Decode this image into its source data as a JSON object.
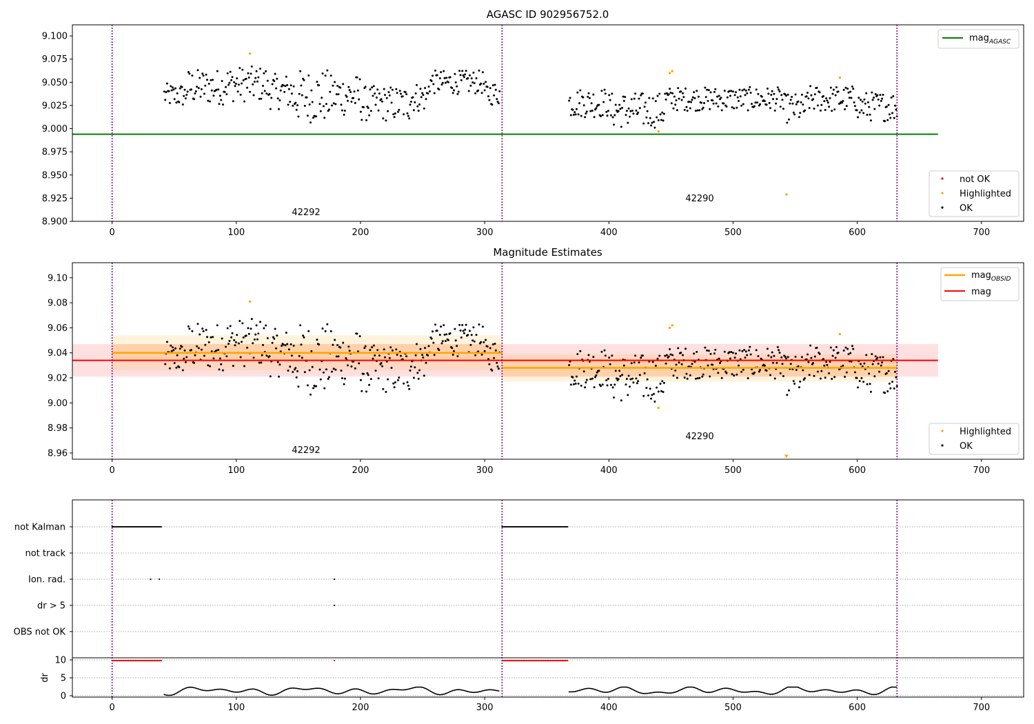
{
  "colors": {
    "ok": "#000000",
    "highlighted": "#ffa500",
    "not_ok": "#ff0000",
    "agasc_line": "#008000",
    "obsid_line": "#ffa500",
    "mag_line": "#ff0000",
    "vline": "#800080"
  },
  "chart_data": [
    {
      "type": "scatter",
      "title": "AGASC ID 902956752.0",
      "xlim": [
        -32,
        734
      ],
      "ylim": [
        8.9,
        9.112
      ],
      "xticks": [
        "0",
        "100",
        "200",
        "300",
        "400",
        "500",
        "600",
        "700"
      ],
      "yticks": [
        "8.900",
        "8.925",
        "8.950",
        "8.975",
        "9.000",
        "9.025",
        "9.050",
        "9.075",
        "9.100"
      ],
      "obsid_boundaries": [
        0,
        314,
        632
      ],
      "obsid_labels": [
        {
          "text": "42292",
          "x": 156,
          "y": 8.909
        },
        {
          "text": "42290",
          "x": 472,
          "y": 8.924
        }
      ],
      "agasc_mag": 8.994,
      "agasc_mag_xrange": [
        -32,
        665
      ],
      "highlighted": [
        [
          111,
          9.081
        ],
        [
          449,
          9.06
        ],
        [
          451,
          9.062
        ],
        [
          440,
          8.997
        ],
        [
          543,
          8.929
        ],
        [
          586,
          9.055
        ]
      ],
      "legend_top": {
        "label_main": "mag",
        "label_sub": "AGASC"
      },
      "legend_bottom": [
        "not OK",
        "Highlighted",
        "OK"
      ]
    },
    {
      "type": "scatter",
      "title": "Magnitude Estimates",
      "xlim": [
        -32,
        734
      ],
      "ylim": [
        8.955,
        9.112
      ],
      "xticks": [
        "0",
        "100",
        "200",
        "300",
        "400",
        "500",
        "600",
        "700"
      ],
      "yticks": [
        "8.96",
        "8.98",
        "9.00",
        "9.02",
        "9.04",
        "9.06",
        "9.08",
        "9.10"
      ],
      "obsid_boundaries": [
        0,
        314,
        632
      ],
      "obsid_labels": [
        {
          "text": "42292",
          "x": 156,
          "y": 8.962
        },
        {
          "text": "42290",
          "x": 472,
          "y": 8.9735
        }
      ],
      "mag": 9.034,
      "mag_band": [
        9.021,
        9.047
      ],
      "mag_xrange": [
        -32,
        665
      ],
      "obsid_mags": [
        {
          "x0": 0,
          "x1": 314,
          "mag": 9.04,
          "band": [
            9.026,
            9.054
          ],
          "band_outer": [
            9.033,
            9.047
          ]
        },
        {
          "x0": 314,
          "x1": 632,
          "mag": 9.028,
          "band": [
            9.017,
            9.039
          ],
          "band_outer": [
            9.021,
            9.035
          ]
        }
      ],
      "highlighted": [
        [
          111,
          9.081
        ],
        [
          449,
          9.06
        ],
        [
          451,
          9.062
        ],
        [
          440,
          8.996
        ],
        [
          586,
          9.055
        ]
      ],
      "offscale_marker": {
        "x": 543,
        "y": 8.957
      },
      "legend_top": [
        {
          "label_main": "mag",
          "label_sub": "OBSID"
        },
        {
          "label_main": "mag",
          "label_sub": ""
        }
      ],
      "legend_bottom": [
        "Highlighted",
        "OK"
      ]
    },
    {
      "type": "scatter",
      "title": "",
      "xlim": [
        -32,
        734
      ],
      "categories": [
        "not Kalman",
        "not track",
        "Ion. rad.",
        "dr > 5",
        "OBS not OK"
      ],
      "flags": {
        "not Kalman": [
          [
            0,
            40
          ],
          [
            314,
            367
          ]
        ],
        "Ion. rad.": [
          31,
          38,
          179
        ],
        "dr > 5": [
          179
        ]
      },
      "dr_yticks": [
        "0",
        "5",
        "10"
      ],
      "dr_label": "dr",
      "dr_ylim": [
        0,
        10.5
      ],
      "dr_clip_ranges": [
        [
          0,
          40
        ],
        [
          179,
          179
        ],
        [
          314,
          367
        ]
      ],
      "xticks": [
        "0",
        "100",
        "200",
        "300",
        "400",
        "500",
        "600",
        "700"
      ],
      "obsid_boundaries": [
        0,
        314,
        632
      ]
    }
  ]
}
